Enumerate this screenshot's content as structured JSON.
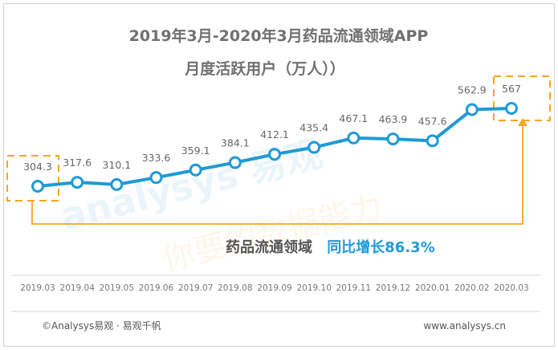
{
  "title_line1": "2019年3月-2020年3月药品流通领域APP",
  "title_line2": "月度活跃用户（万人））",
  "chart_data": {
    "type": "line",
    "title": "2019年3月-2020年3月药品流通领域APP 月度活跃用户（万人））",
    "categories": [
      "2019.03",
      "2019.04",
      "2019.05",
      "2019.06",
      "2019.07",
      "2019.08",
      "2019.09",
      "2019.10",
      "2019.11",
      "2019.12",
      "2020.01",
      "2020.02",
      "2020.03"
    ],
    "series": [
      {
        "values": [
          304.3,
          317.6,
          310.1,
          333.6,
          359.1,
          384.1,
          412.1,
          435.4,
          467.1,
          463.9,
          457.6,
          562.9,
          567
        ],
        "labels": [
          "304.3",
          "317.6",
          "310.1",
          "333.6",
          "359.1",
          "384.1",
          "412.1",
          "435.4",
          "467.1",
          "463.9",
          "457.6",
          "562.9",
          "567"
        ]
      }
    ],
    "xlabel": "",
    "ylabel": "",
    "grid": false,
    "line_color": "#1f9ad6",
    "annotation_color": "#f5a623"
  },
  "annotation": {
    "label": "药品流通领域",
    "growth": "同比增长86.3%"
  },
  "watermark": {
    "brand": "analysys 易观",
    "slogan": "你要的数据能力"
  },
  "footer": {
    "copyright": "©Analysys易观 · 易观千帆",
    "website": "www.analysys.cn"
  }
}
